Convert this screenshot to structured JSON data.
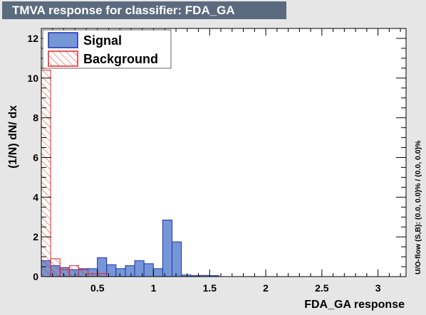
{
  "window": {
    "title": "TMVA response for classifier: FDA_GA"
  },
  "side_note": "U/O-flow (S,B): (0.0, 0.0)% / (0.0, 0.0)%",
  "colors": {
    "signal_fill": "#7597d5",
    "signal_line": "#1d2fb8",
    "background_line": "#ee2222",
    "frame_bg": "#e6e6e6",
    "title_bg": "#5b6b7f"
  },
  "chart_data": {
    "type": "bar",
    "title": "TMVA response for classifier: FDA_GA",
    "xlabel": "FDA_GA response",
    "ylabel": "(1/N) dN/ dx",
    "xlim": [
      0.0,
      3.25
    ],
    "ylim": [
      0,
      12.5
    ],
    "x_ticks": [
      0.5,
      1,
      1.5,
      2,
      2.5,
      3
    ],
    "x_tick_labels": [
      "0.5",
      "1",
      "1.5",
      "2",
      "2.5",
      "3"
    ],
    "y_ticks": [
      0,
      2,
      4,
      6,
      8,
      10,
      12
    ],
    "y_tick_labels": [
      "0",
      "2",
      "4",
      "6",
      "8",
      "10",
      "12"
    ],
    "legend_position": "top-left",
    "bin_edges": [
      0.0,
      0.0832,
      0.1664,
      0.2496,
      0.3328,
      0.416,
      0.4992,
      0.5824,
      0.6656,
      0.7488,
      0.832,
      0.9152,
      0.9984,
      1.0816,
      1.1648,
      1.248,
      1.3312,
      1.4144,
      1.4976,
      1.5808,
      1.664
    ],
    "series": [
      {
        "name": "Signal",
        "style": "filled",
        "values": [
          0.8,
          0.55,
          0.45,
          0.35,
          0.4,
          0.4,
          0.95,
          0.6,
          0.4,
          0.55,
          0.8,
          0.65,
          0.4,
          2.85,
          1.75,
          0.08,
          0.05,
          0.06,
          0.05,
          0.0
        ]
      },
      {
        "name": "Background",
        "style": "hatched",
        "values": [
          10.4,
          0.9,
          0.35,
          0.55,
          0.35,
          0.15,
          0.15,
          0.0,
          0.0,
          0.0,
          0.0,
          0.0,
          0.0,
          0.0,
          0.0,
          0.0,
          0.0,
          0.0,
          0.0,
          0.0
        ]
      }
    ]
  }
}
